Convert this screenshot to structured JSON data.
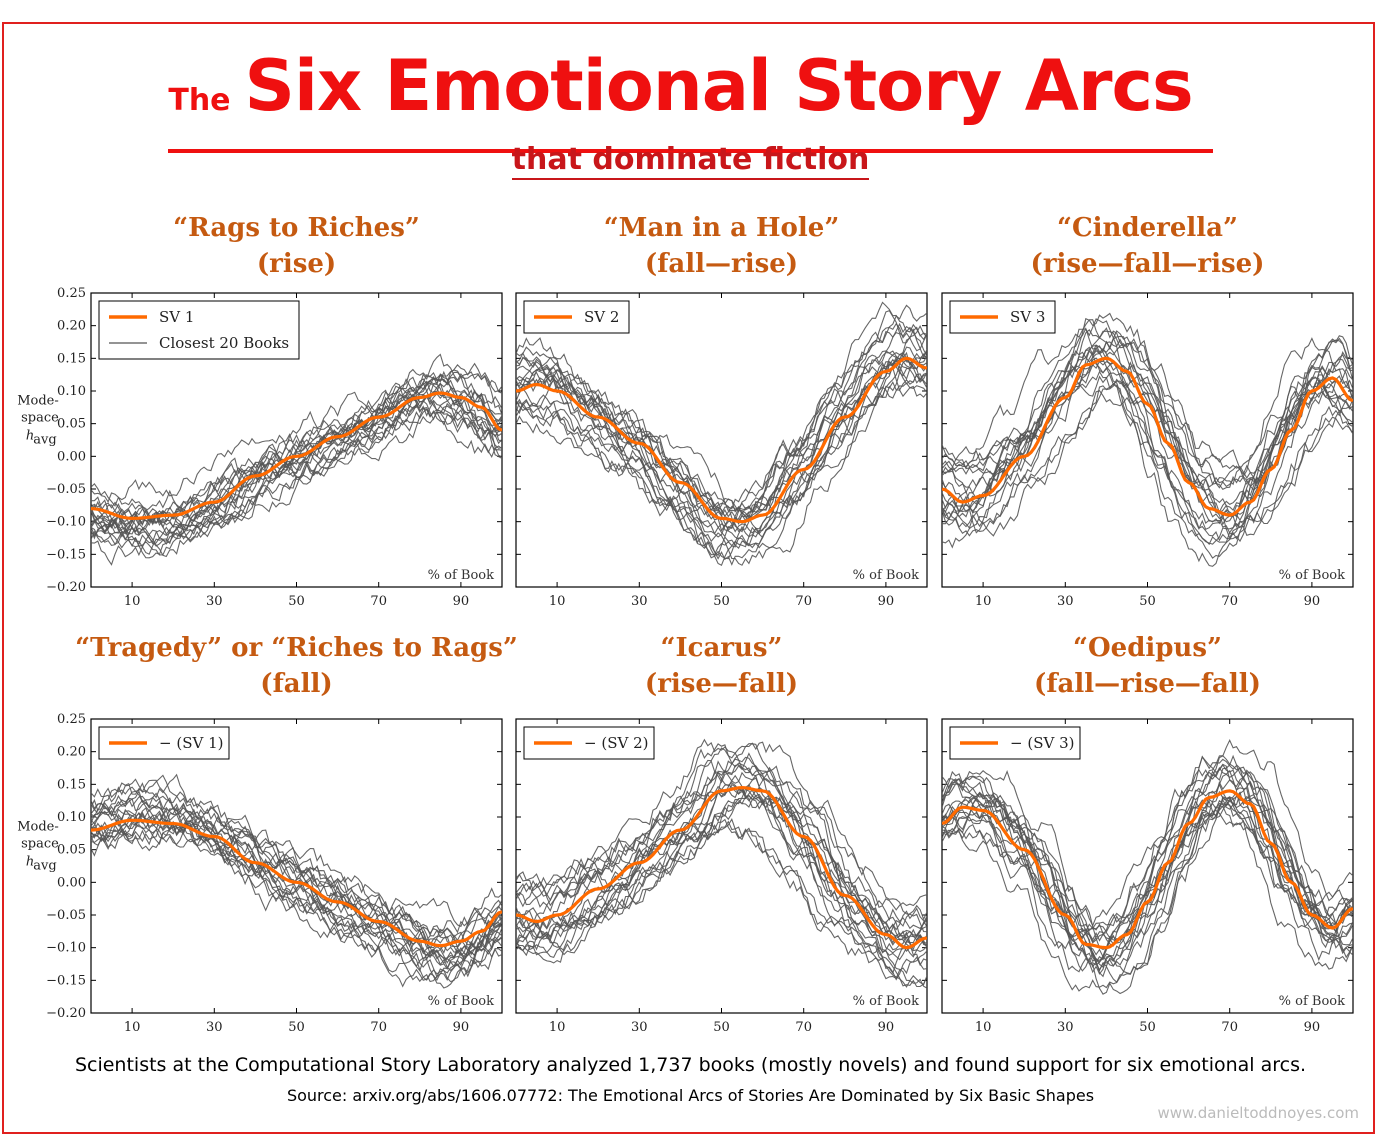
{
  "header": {
    "title_prefix": "The",
    "title_main": "Six Emotional Story Arcs",
    "subtitle": "that dominate fiction"
  },
  "colors": {
    "accent": "#ef1010",
    "panel_title": "#c55a11",
    "curve": "#ff6a00",
    "books": "#555555"
  },
  "chart_data": [
    {
      "type": "line",
      "title": "“Rags to Riches”",
      "subtitle": "(rise)",
      "legend": {
        "main": "SV 1",
        "books": "Closest 20 Books",
        "placement": "top-left"
      },
      "xlabel": "% of Book",
      "ylabel": [
        "Mode-",
        "space",
        "h",
        "avg"
      ],
      "xlim": [
        0,
        100
      ],
      "ylim": [
        -0.2,
        0.25
      ],
      "xticks": [
        10,
        30,
        50,
        70,
        90
      ],
      "yticks": [
        -0.2,
        -0.15,
        -0.1,
        -0.05,
        0.0,
        0.05,
        0.1,
        0.15,
        0.2,
        0.25
      ],
      "ytick_labels": [
        "−0.20",
        "−0.15",
        "−0.10",
        "−0.05",
        "0.00",
        "0.05",
        "0.10",
        "0.15",
        "0.20",
        "0.25"
      ],
      "show_ytick_labels": true,
      "x": [
        0,
        10,
        20,
        30,
        40,
        50,
        60,
        70,
        80,
        85,
        90,
        95,
        100
      ],
      "main": [
        -0.08,
        -0.095,
        -0.09,
        -0.07,
        -0.03,
        0.0,
        0.03,
        0.06,
        0.09,
        0.097,
        0.09,
        0.075,
        0.04
      ],
      "books": 20,
      "book_spread": 0.045
    },
    {
      "type": "line",
      "title": "“Man in a Hole”",
      "subtitle": "(fall—rise)",
      "legend": {
        "main": "SV 2",
        "books": "",
        "placement": "top-left"
      },
      "xlabel": "% of Book",
      "xlim": [
        0,
        100
      ],
      "ylim": [
        -0.2,
        0.25
      ],
      "xticks": [
        10,
        30,
        50,
        70,
        90
      ],
      "yticks": [
        -0.2,
        -0.15,
        -0.1,
        -0.05,
        0.0,
        0.05,
        0.1,
        0.15,
        0.2,
        0.25
      ],
      "show_ytick_labels": false,
      "x": [
        0,
        5,
        10,
        20,
        30,
        40,
        50,
        55,
        60,
        70,
        80,
        90,
        95,
        100
      ],
      "main": [
        0.1,
        0.11,
        0.1,
        0.06,
        0.02,
        -0.04,
        -0.095,
        -0.1,
        -0.09,
        -0.02,
        0.06,
        0.13,
        0.15,
        0.135
      ],
      "books": 20,
      "book_spread": 0.07
    },
    {
      "type": "line",
      "title": "“Cinderella”",
      "subtitle": "(rise—fall—rise)",
      "legend": {
        "main": "SV 3",
        "books": "",
        "placement": "top-left"
      },
      "xlabel": "% of Book",
      "xlim": [
        0,
        100
      ],
      "ylim": [
        -0.2,
        0.25
      ],
      "xticks": [
        10,
        30,
        50,
        70,
        90
      ],
      "yticks": [
        -0.2,
        -0.15,
        -0.1,
        -0.05,
        0.0,
        0.05,
        0.1,
        0.15,
        0.2,
        0.25
      ],
      "show_ytick_labels": false,
      "x": [
        0,
        5,
        10,
        20,
        30,
        35,
        40,
        45,
        50,
        55,
        60,
        65,
        70,
        75,
        80,
        85,
        90,
        95,
        100
      ],
      "main": [
        -0.05,
        -0.07,
        -0.06,
        0.0,
        0.09,
        0.14,
        0.15,
        0.13,
        0.08,
        0.02,
        -0.04,
        -0.08,
        -0.09,
        -0.07,
        -0.02,
        0.04,
        0.1,
        0.12,
        0.085
      ],
      "books": 20,
      "book_spread": 0.08
    },
    {
      "type": "line",
      "title": "“Tragedy” or “Riches to Rags”",
      "subtitle": "(fall)",
      "legend": {
        "main": "− (SV 1)",
        "books": "",
        "placement": "top-left"
      },
      "xlabel": "% of Book",
      "ylabel": [
        "Mode-",
        "space",
        "h",
        "avg"
      ],
      "xlim": [
        0,
        100
      ],
      "ylim": [
        -0.2,
        0.25
      ],
      "xticks": [
        10,
        30,
        50,
        70,
        90
      ],
      "yticks": [
        -0.2,
        -0.15,
        -0.1,
        -0.05,
        0.0,
        0.05,
        0.1,
        0.15,
        0.2,
        0.25
      ],
      "ytick_labels": [
        "−0.20",
        "−0.15",
        "−0.10",
        "−0.05",
        "0.00",
        "0.05",
        "0.10",
        "0.15",
        "0.20",
        "0.25"
      ],
      "show_ytick_labels": true,
      "x": [
        0,
        10,
        20,
        30,
        40,
        50,
        60,
        70,
        80,
        85,
        90,
        95,
        100
      ],
      "main": [
        0.08,
        0.095,
        0.09,
        0.07,
        0.03,
        0.0,
        -0.03,
        -0.06,
        -0.09,
        -0.097,
        -0.09,
        -0.075,
        -0.045
      ],
      "books": 20,
      "book_spread": 0.045
    },
    {
      "type": "line",
      "title": "“Icarus”",
      "subtitle": "(rise—fall)",
      "legend": {
        "main": "− (SV 2)",
        "books": "",
        "placement": "top-left"
      },
      "xlabel": "% of Book",
      "xlim": [
        0,
        100
      ],
      "ylim": [
        -0.2,
        0.25
      ],
      "xticks": [
        10,
        30,
        50,
        70,
        90
      ],
      "yticks": [
        -0.2,
        -0.15,
        -0.1,
        -0.05,
        0.0,
        0.05,
        0.1,
        0.15,
        0.2,
        0.25
      ],
      "show_ytick_labels": false,
      "x": [
        0,
        5,
        10,
        20,
        30,
        40,
        50,
        55,
        60,
        70,
        80,
        90,
        95,
        100
      ],
      "main": [
        -0.05,
        -0.06,
        -0.05,
        -0.01,
        0.03,
        0.08,
        0.14,
        0.145,
        0.14,
        0.07,
        -0.02,
        -0.08,
        -0.1,
        -0.085
      ],
      "books": 20,
      "book_spread": 0.07
    },
    {
      "type": "line",
      "title": "“Oedipus”",
      "subtitle": "(fall—rise—fall)",
      "legend": {
        "main": "− (SV 3)",
        "books": "",
        "placement": "top-left"
      },
      "xlabel": "% of Book",
      "xlim": [
        0,
        100
      ],
      "ylim": [
        -0.2,
        0.25
      ],
      "xticks": [
        10,
        30,
        50,
        70,
        90
      ],
      "yticks": [
        -0.2,
        -0.15,
        -0.1,
        -0.05,
        0.0,
        0.05,
        0.1,
        0.15,
        0.2,
        0.25
      ],
      "show_ytick_labels": false,
      "x": [
        0,
        5,
        10,
        20,
        30,
        35,
        40,
        45,
        50,
        55,
        60,
        65,
        70,
        75,
        80,
        85,
        90,
        95,
        100
      ],
      "main": [
        0.09,
        0.115,
        0.11,
        0.05,
        -0.05,
        -0.095,
        -0.1,
        -0.08,
        -0.03,
        0.03,
        0.09,
        0.13,
        0.14,
        0.12,
        0.06,
        0.0,
        -0.05,
        -0.07,
        -0.04
      ],
      "books": 20,
      "book_spread": 0.08
    }
  ],
  "footer": {
    "caption": "Scientists at the Computational Story Laboratory analyzed 1,737 books (mostly novels) and found support for six emotional arcs.",
    "source": "Source: arxiv.org/abs/1606.07772: The Emotional Arcs of Stories Are Dominated by Six Basic Shapes",
    "watermark": "www.danieltoddnoyes.com"
  }
}
